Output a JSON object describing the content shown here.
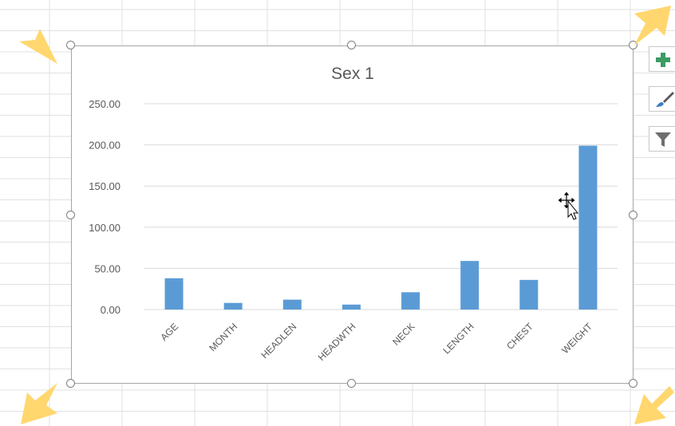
{
  "toolbar": {
    "chart_elements_icon": "plus-icon",
    "chart_styles_icon": "paintbrush-icon",
    "chart_filters_icon": "funnel-icon"
  },
  "colors": {
    "bar": "#5b9bd5",
    "gridline": "#d9d9d9",
    "sheet_grid": "#e1e1e1",
    "frame": "#a6a6a6",
    "arrow": "#ffd76e",
    "accent_plus": "#3c9b64"
  },
  "chart_data": {
    "type": "bar",
    "title": "Sex 1",
    "categories": [
      "AGE",
      "MONTH",
      "HEADLEN",
      "HEADWTH",
      "NECK",
      "LENGTH",
      "CHEST",
      "WEIGHT"
    ],
    "values": [
      38,
      8,
      12,
      6,
      21,
      59,
      36,
      199
    ],
    "ylim": [
      0,
      250
    ],
    "yticks": [
      "0.00",
      "50.00",
      "100.00",
      "150.00",
      "200.00",
      "250.00"
    ],
    "grid": true,
    "legend": "none"
  }
}
